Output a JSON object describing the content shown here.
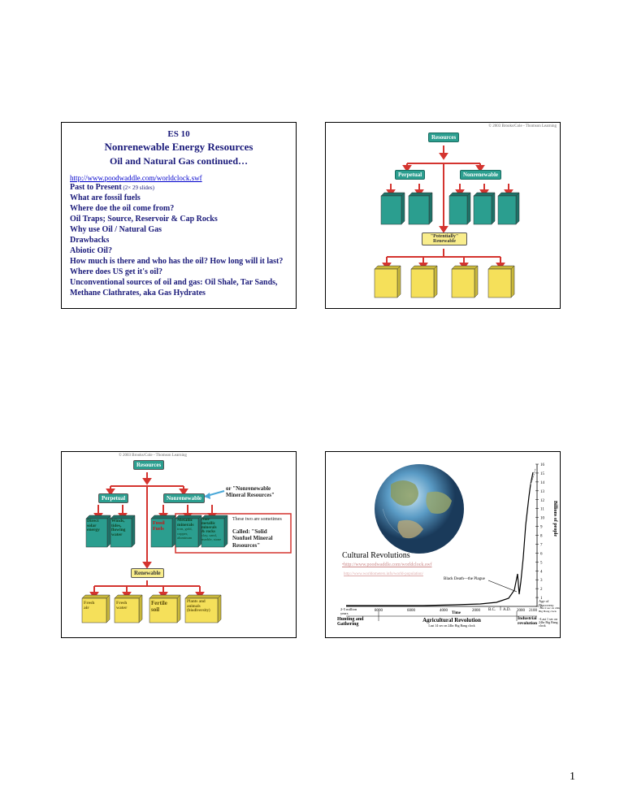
{
  "slide1": {
    "course": "ES 10",
    "title": "Nonrenewable Energy Resources",
    "subtitle": "Oil and Natural Gas continued…",
    "link": "http://www.poodwaddle.com/worldclock.swf",
    "line1a": "Past to Present",
    "line1b": " (2× 29 slides)",
    "lines": [
      "What are fossil fuels",
      "Where doe the oil come from?",
      "Oil Traps; Source, Reservoir & Cap Rocks",
      "Why use Oil /  Natural Gas",
      "Drawbacks",
      "Abiotic Oil?",
      "How much is there and who has the oil? How long will it last?",
      "Where does US get it's oil?",
      "Unconventional sources of oil and gas: Oil Shale, Tar Sands, Methane Clathrates, aka Gas Hydrates"
    ]
  },
  "slide2": {
    "copyright": "© 2003 Brooks/Cole - Thomson Learning",
    "resources": "Resources",
    "perpetual": "Perpetual",
    "nonrenewable": "Nonrenewable",
    "potentially": "\"Potentially\" Renewable",
    "colors": {
      "teal": "#2b9e8f",
      "red": "#d4342f",
      "yellow": "#f5e05a",
      "yellowLabel": "#f9ed8c"
    }
  },
  "slide3": {
    "copyright": "© 2003 Brooks/Cole - Thomson Learning",
    "resources": "Resources",
    "perpetual": "Perpetual",
    "nonrenewable": "Nonrenewable",
    "renewable": "Renewable",
    "note1": "or \"Nonrenewable Mineral Resources\"",
    "note2a": "These two are sometimes",
    "note2b": "Called: \"Solid Nonfuel Mineral Resources\"",
    "perp1a": "Direct",
    "perp1b": "solar",
    "perp1c": "energy",
    "perp2a": "Winds,",
    "perp2b": "tides,",
    "perp2c": "flowing",
    "perp2d": "water",
    "nr1a": "Fossil",
    "nr1b": "Fuels",
    "nr2a": "Metallic",
    "nr2b": "minerals",
    "nr2c": "iron, gold,",
    "nr2d": "copper,",
    "nr2e": "aluminum",
    "nr3a": "Non-",
    "nr3b": "metallic",
    "nr3c": "minerals",
    "nr3d": "& rocks",
    "nr3e": "clay, sand,",
    "nr3f": "marble, stone",
    "ren1a": "Fresh",
    "ren1b": "air",
    "ren2a": "Fresh",
    "ren2b": "water",
    "ren3a": "Fertile",
    "ren3b": "soil",
    "ren4a": "Plants and",
    "ren4b": "animals",
    "ren4c": "(biodiversity)"
  },
  "slide4": {
    "cultural": "Cultural Revolutions",
    "link1": "•http://www.poodwaddle.com/worldclock.swf",
    "link2": "http://www.worldometers.info/world-population/",
    "hunting": "Hunting and Gathering",
    "agri": "Agricultural Revolution",
    "agri_sub": "Last 14 sec on 24hr Big Bang clock",
    "ind": "Industrial revolution",
    "ind_sub": "~Last 1 sec on 24hr Big Bang clock",
    "black_death": "Black Death—the Plague",
    "ylabel": "Billions of people",
    "xlabel": "Time",
    "bc": "B.C.",
    "ad": "A.D.",
    "xstart": "2-5 million years",
    "xticks": [
      "8000",
      "6000",
      "4000",
      "2000",
      "2000",
      "2100"
    ],
    "yticks": [
      "0",
      "1",
      "2",
      "3",
      "4",
      "5",
      "6",
      "7",
      "8",
      "9",
      "10",
      "11",
      "12",
      "13",
      "14",
      "15",
      "16"
    ],
    "discovery": "Age of Discovery",
    "discovery_sub": "~last 2 sec on 24hr Big Bang clock"
  },
  "pageNum": "1"
}
